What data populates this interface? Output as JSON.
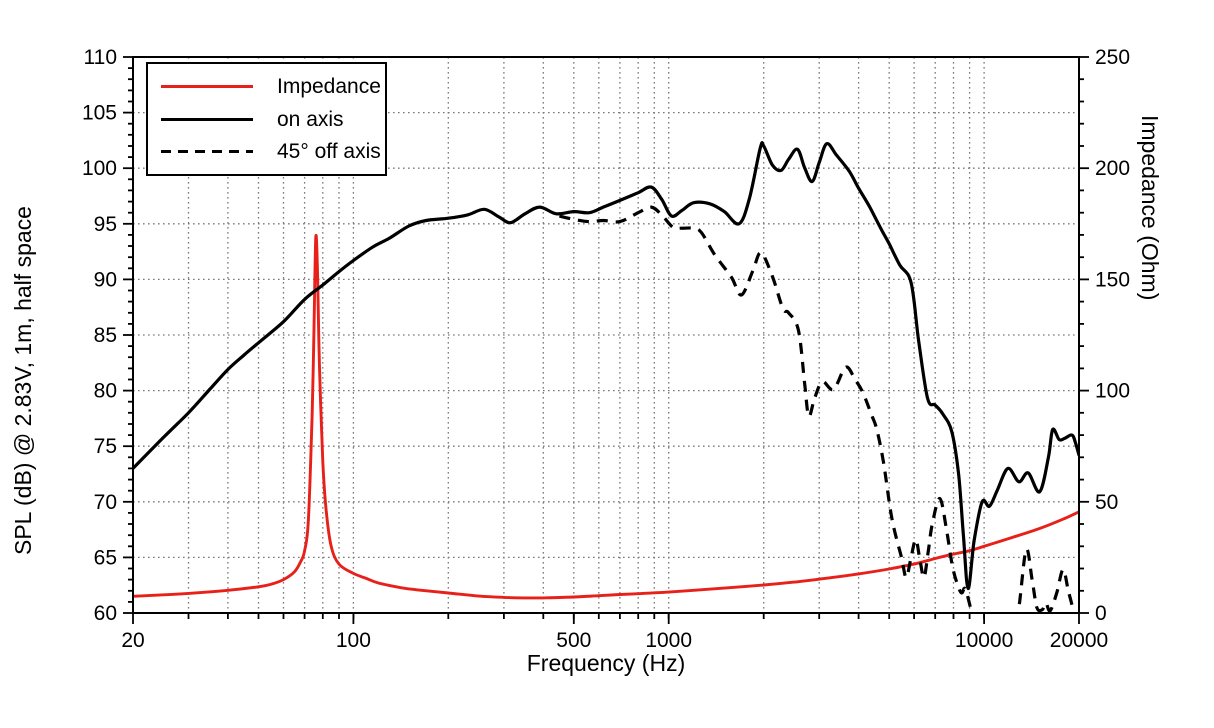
{
  "figure": {
    "background": "#ffffff",
    "axis_color": "#000000",
    "grid_color": "#7a7a7a",
    "titles": {
      "x": "Frequency (Hz)",
      "y_left": "SPL (dB) @ 2.83V, 1m, half space",
      "y_right": "Impedance (Ohm)"
    },
    "legend": {
      "position": "top-left",
      "items": [
        {
          "label": "Impedance",
          "color": "#e8201a",
          "style": "solid"
        },
        {
          "label": "on axis",
          "color": "#000000",
          "style": "solid"
        },
        {
          "label": "45° off axis",
          "color": "#000000",
          "style": "dashed"
        }
      ]
    }
  },
  "chart_data": {
    "type": "line",
    "title": "",
    "xlabel": "Frequency (Hz)",
    "ylabel_left": "SPL (dB) @ 2.83V, 1m, half space",
    "ylabel_right": "Impedance (Ohm)",
    "x_scale": "log",
    "xlim": [
      20,
      20000
    ],
    "ylim_left": [
      60,
      110
    ],
    "ylim_right": [
      0,
      250
    ],
    "x_tick_labels": [
      20,
      100,
      500,
      1000,
      10000,
      20000
    ],
    "y_left_major_step": 5,
    "y_left_minor_step": 1,
    "y_right_major_step": 50,
    "y_right_minor_step": 10,
    "grid": "dotted",
    "legend_position": "top-left",
    "series": [
      {
        "name": "Impedance",
        "axis": "right",
        "unit": "Ohm",
        "color": "#e8201a",
        "style": "solid",
        "points": [
          [
            20,
            7.5
          ],
          [
            25,
            8.2
          ],
          [
            30,
            8.8
          ],
          [
            40,
            10.2
          ],
          [
            50,
            11.8
          ],
          [
            55,
            13.0
          ],
          [
            60,
            15.0
          ],
          [
            65,
            18.5
          ],
          [
            68,
            23
          ],
          [
            70,
            28
          ],
          [
            72,
            42
          ],
          [
            74,
            90
          ],
          [
            75,
            128
          ],
          [
            76,
            169
          ],
          [
            77,
            152
          ],
          [
            78,
            112
          ],
          [
            80,
            68
          ],
          [
            82,
            46
          ],
          [
            85,
            30
          ],
          [
            90,
            22
          ],
          [
            100,
            17.8
          ],
          [
            110,
            15.5
          ],
          [
            120,
            13.5
          ],
          [
            140,
            11.5
          ],
          [
            160,
            10.4
          ],
          [
            200,
            9.0
          ],
          [
            250,
            7.6
          ],
          [
            300,
            7.0
          ],
          [
            350,
            6.8
          ],
          [
            400,
            6.8
          ],
          [
            500,
            7.2
          ],
          [
            600,
            7.8
          ],
          [
            700,
            8.3
          ],
          [
            800,
            8.7
          ],
          [
            900,
            9.1
          ],
          [
            1000,
            9.4
          ],
          [
            1200,
            10.2
          ],
          [
            1500,
            11.2
          ],
          [
            2000,
            12.6
          ],
          [
            2500,
            13.9
          ],
          [
            3000,
            15.2
          ],
          [
            4000,
            17.6
          ],
          [
            5000,
            19.8
          ],
          [
            6000,
            22.0
          ],
          [
            7000,
            24.5
          ],
          [
            8000,
            26.5
          ],
          [
            9000,
            28.0
          ],
          [
            10000,
            30.0
          ],
          [
            12000,
            33.5
          ],
          [
            15000,
            38.0
          ],
          [
            18000,
            42.5
          ],
          [
            20000,
            45.5
          ]
        ]
      },
      {
        "name": "on axis",
        "axis": "left",
        "unit": "dB",
        "color": "#000000",
        "style": "solid",
        "points": [
          [
            20,
            73.0
          ],
          [
            25,
            75.8
          ],
          [
            30,
            78.0
          ],
          [
            35,
            80.1
          ],
          [
            40,
            81.9
          ],
          [
            45,
            83.2
          ],
          [
            50,
            84.3
          ],
          [
            60,
            86.2
          ],
          [
            70,
            88.2
          ],
          [
            80,
            89.5
          ],
          [
            90,
            90.7
          ],
          [
            100,
            91.7
          ],
          [
            115,
            92.9
          ],
          [
            130,
            93.7
          ],
          [
            150,
            94.8
          ],
          [
            170,
            95.3
          ],
          [
            200,
            95.5
          ],
          [
            230,
            95.8
          ],
          [
            260,
            96.3
          ],
          [
            290,
            95.6
          ],
          [
            315,
            95.1
          ],
          [
            350,
            95.9
          ],
          [
            390,
            96.5
          ],
          [
            440,
            95.9
          ],
          [
            500,
            96.1
          ],
          [
            560,
            96.0
          ],
          [
            620,
            96.5
          ],
          [
            700,
            97.1
          ],
          [
            800,
            97.8
          ],
          [
            880,
            98.3
          ],
          [
            950,
            97.2
          ],
          [
            1020,
            95.7
          ],
          [
            1100,
            96.2
          ],
          [
            1200,
            96.9
          ],
          [
            1350,
            96.8
          ],
          [
            1500,
            96.1
          ],
          [
            1670,
            95.0
          ],
          [
            1800,
            97.2
          ],
          [
            1950,
            101.8
          ],
          [
            2000,
            102.0
          ],
          [
            2130,
            100.3
          ],
          [
            2270,
            99.8
          ],
          [
            2400,
            100.8
          ],
          [
            2560,
            101.7
          ],
          [
            2700,
            100.0
          ],
          [
            2850,
            98.8
          ],
          [
            3000,
            100.5
          ],
          [
            3170,
            102.2
          ],
          [
            3400,
            101.2
          ],
          [
            3740,
            99.7
          ],
          [
            4000,
            98.2
          ],
          [
            4340,
            96.5
          ],
          [
            4700,
            94.6
          ],
          [
            5000,
            93.2
          ],
          [
            5400,
            91.3
          ],
          [
            5870,
            89.7
          ],
          [
            6200,
            84.5
          ],
          [
            6620,
            79.3
          ],
          [
            7000,
            78.7
          ],
          [
            7400,
            77.9
          ],
          [
            7900,
            76.3
          ],
          [
            8300,
            72.5
          ],
          [
            8600,
            67.0
          ],
          [
            8900,
            62.2
          ],
          [
            9300,
            66.5
          ],
          [
            9860,
            70.0
          ],
          [
            10400,
            69.6
          ],
          [
            11000,
            71.0
          ],
          [
            11900,
            73.0
          ],
          [
            12900,
            71.8
          ],
          [
            13800,
            72.6
          ],
          [
            15000,
            70.9
          ],
          [
            16000,
            74.0
          ],
          [
            16500,
            76.5
          ],
          [
            17300,
            75.6
          ],
          [
            18000,
            75.7
          ],
          [
            19000,
            76.0
          ],
          [
            19500,
            75.3
          ],
          [
            20000,
            74.2
          ]
        ]
      },
      {
        "name": "45° off axis",
        "axis": "left",
        "unit": "dB",
        "color": "#000000",
        "style": "dashed",
        "points": [
          [
            450,
            95.7
          ],
          [
            500,
            95.4
          ],
          [
            560,
            95.2
          ],
          [
            620,
            95.3
          ],
          [
            700,
            95.2
          ],
          [
            800,
            96.0
          ],
          [
            880,
            96.5
          ],
          [
            950,
            95.8
          ],
          [
            1030,
            94.7
          ],
          [
            1100,
            94.6
          ],
          [
            1200,
            94.6
          ],
          [
            1270,
            94.2
          ],
          [
            1400,
            92.2
          ],
          [
            1580,
            90.2
          ],
          [
            1700,
            88.6
          ],
          [
            1850,
            90.8
          ],
          [
            1960,
            92.4
          ],
          [
            2130,
            90.3
          ],
          [
            2300,
            87.4
          ],
          [
            2400,
            87.0
          ],
          [
            2580,
            85.4
          ],
          [
            2700,
            80.5
          ],
          [
            2780,
            77.7
          ],
          [
            2900,
            79.3
          ],
          [
            3070,
            80.8
          ],
          [
            3330,
            80.1
          ],
          [
            3640,
            82.1
          ],
          [
            3900,
            81.0
          ],
          [
            4130,
            79.8
          ],
          [
            4400,
            77.8
          ],
          [
            4570,
            76.5
          ],
          [
            4800,
            73.5
          ],
          [
            5100,
            68.5
          ],
          [
            5470,
            65.0
          ],
          [
            5660,
            63.2
          ],
          [
            5850,
            64.8
          ],
          [
            6070,
            66.6
          ],
          [
            6260,
            64.8
          ],
          [
            6450,
            63.2
          ],
          [
            6650,
            65.5
          ],
          [
            6850,
            68.0
          ],
          [
            7240,
            70.3
          ],
          [
            7600,
            67.5
          ],
          [
            7950,
            64.1
          ],
          [
            8300,
            62.3
          ],
          [
            8500,
            61.8
          ],
          [
            8700,
            62.2
          ],
          [
            9000,
            60.8
          ],
          [
            9400,
            58.5
          ],
          [
            10000,
            55.5
          ],
          [
            10800,
            54.0
          ],
          [
            11600,
            55.0
          ],
          [
            12300,
            57.5
          ],
          [
            12900,
            60.5
          ],
          [
            13600,
            65.7
          ],
          [
            14200,
            63.0
          ],
          [
            14700,
            60.5
          ],
          [
            15300,
            60.3
          ],
          [
            15700,
            60.9
          ],
          [
            16200,
            60.2
          ],
          [
            17000,
            61.8
          ],
          [
            17800,
            63.9
          ],
          [
            18500,
            62.0
          ],
          [
            19200,
            60.1
          ],
          [
            19600,
            58.0
          ],
          [
            20000,
            56.0
          ]
        ]
      }
    ]
  }
}
